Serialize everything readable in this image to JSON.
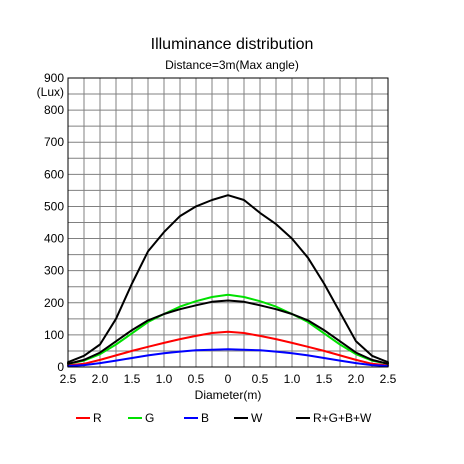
{
  "chart_data": {
    "type": "line",
    "title": "Illuminance distribution",
    "subtitle": "Distance=3m(Max angle)",
    "xlabel": "Diameter(m)",
    "ylabel": "(Lux)",
    "x_tick_labels": [
      "2.5",
      "2.0",
      "1.5",
      "1.0",
      "0.5",
      "0",
      "0.5",
      "1.0",
      "1.5",
      "2.0",
      "2.5"
    ],
    "y_ticks": [
      0,
      100,
      200,
      300,
      400,
      500,
      600,
      700,
      800,
      900
    ],
    "xlim": [
      -2.5,
      2.5
    ],
    "ylim": [
      0,
      900
    ],
    "grid": true,
    "legend_position": "bottom",
    "x": [
      -2.5,
      -2.25,
      -2.0,
      -1.75,
      -1.5,
      -1.25,
      -1.0,
      -0.75,
      -0.5,
      -0.25,
      0.0,
      0.25,
      0.5,
      0.75,
      1.0,
      1.25,
      1.5,
      1.75,
      2.0,
      2.25,
      2.5
    ],
    "series": [
      {
        "name": "R",
        "color": "#ff0000",
        "values": [
          5,
          10,
          22,
          36,
          50,
          63,
          75,
          87,
          97,
          106,
          110,
          106,
          97,
          87,
          75,
          63,
          50,
          36,
          22,
          10,
          5
        ]
      },
      {
        "name": "G",
        "color": "#00e000",
        "values": [
          10,
          20,
          40,
          70,
          105,
          140,
          165,
          188,
          205,
          218,
          225,
          218,
          205,
          188,
          165,
          140,
          105,
          70,
          40,
          20,
          10
        ]
      },
      {
        "name": "B",
        "color": "#0000ff",
        "values": [
          3,
          6,
          12,
          20,
          28,
          36,
          43,
          48,
          52,
          54,
          55,
          54,
          52,
          48,
          43,
          36,
          28,
          20,
          12,
          6,
          3
        ]
      },
      {
        "name": "W",
        "color": "#000000",
        "values": [
          10,
          22,
          45,
          80,
          115,
          145,
          165,
          180,
          192,
          203,
          207,
          203,
          192,
          180,
          165,
          145,
          115,
          80,
          45,
          22,
          10
        ]
      },
      {
        "name": "R+G+B+W",
        "color": "#000000",
        "values": [
          15,
          35,
          70,
          150,
          260,
          360,
          420,
          470,
          500,
          520,
          535,
          520,
          480,
          445,
          400,
          340,
          260,
          170,
          80,
          35,
          15
        ]
      }
    ]
  }
}
